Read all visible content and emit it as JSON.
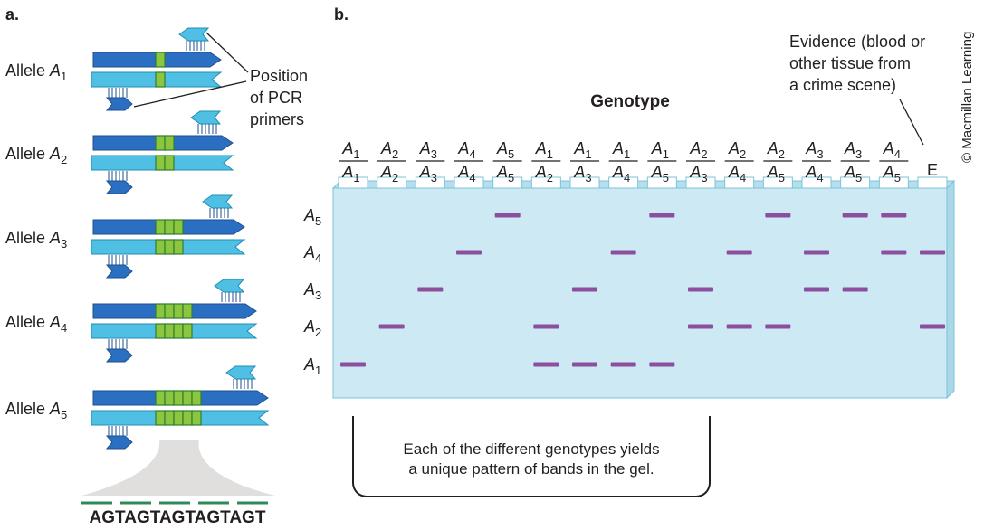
{
  "panel_a": {
    "label": "a.",
    "alleles": [
      {
        "name": "Allele ",
        "sym": "A",
        "sub": "1",
        "repeats": 1
      },
      {
        "name": "Allele ",
        "sym": "A",
        "sub": "2",
        "repeats": 2
      },
      {
        "name": "Allele ",
        "sym": "A",
        "sub": "3",
        "repeats": 3
      },
      {
        "name": "Allele ",
        "sym": "A",
        "sub": "4",
        "repeats": 4
      },
      {
        "name": "Allele ",
        "sym": "A",
        "sub": "5",
        "repeats": 5
      }
    ],
    "primer_callout": [
      "Position",
      "of  PCR",
      "primers"
    ],
    "sequence": "AGTAGTAGTAGTAGT"
  },
  "panel_b": {
    "label": "b.",
    "title": "Genotype",
    "evidence_callout": [
      "Evidence (blood or",
      "other tissue from",
      "a crime scene)"
    ],
    "lanes": [
      {
        "top": "1",
        "bottom": "1",
        "bands": [
          1
        ]
      },
      {
        "top": "2",
        "bottom": "2",
        "bands": [
          2
        ]
      },
      {
        "top": "3",
        "bottom": "3",
        "bands": [
          3
        ]
      },
      {
        "top": "4",
        "bottom": "4",
        "bands": [
          4
        ]
      },
      {
        "top": "5",
        "bottom": "5",
        "bands": [
          5
        ]
      },
      {
        "top": "1",
        "bottom": "2",
        "bands": [
          1,
          2
        ]
      },
      {
        "top": "1",
        "bottom": "3",
        "bands": [
          1,
          3
        ]
      },
      {
        "top": "1",
        "bottom": "4",
        "bands": [
          1,
          4
        ]
      },
      {
        "top": "1",
        "bottom": "5",
        "bands": [
          1,
          5
        ]
      },
      {
        "top": "2",
        "bottom": "3",
        "bands": [
          2,
          3
        ]
      },
      {
        "top": "2",
        "bottom": "4",
        "bands": [
          2,
          4
        ]
      },
      {
        "top": "2",
        "bottom": "5",
        "bands": [
          2,
          5
        ]
      },
      {
        "top": "3",
        "bottom": "4",
        "bands": [
          3,
          4
        ]
      },
      {
        "top": "3",
        "bottom": "5",
        "bands": [
          3,
          5
        ]
      },
      {
        "top": "4",
        "bottom": "5",
        "bands": [
          4,
          5
        ]
      }
    ],
    "evidence_lane": {
      "label": "E",
      "bands": [
        2,
        4
      ]
    },
    "row_labels": [
      {
        "sym": "A",
        "sub": "5",
        "allele": 5
      },
      {
        "sym": "A",
        "sub": "4",
        "allele": 4
      },
      {
        "sym": "A",
        "sub": "3",
        "allele": 3
      },
      {
        "sym": "A",
        "sub": "2",
        "allele": 2
      },
      {
        "sym": "A",
        "sub": "1",
        "allele": 1
      }
    ],
    "caption_lines": [
      "Each of the different genotypes yields",
      "a unique pattern of bands in the gel."
    ]
  },
  "credit": "© Macmillan Learning",
  "colors": {
    "strand_dark": "#2b6fc2",
    "strand_light": "#4fc0e3",
    "repeat_fill": "#8cc63f",
    "repeat_edge": "#2e7d32",
    "gel": "#cde9f3",
    "gel_edge": "#7cc3d8",
    "band": "#8c4f9e",
    "seq_line": "#2e8b57"
  }
}
